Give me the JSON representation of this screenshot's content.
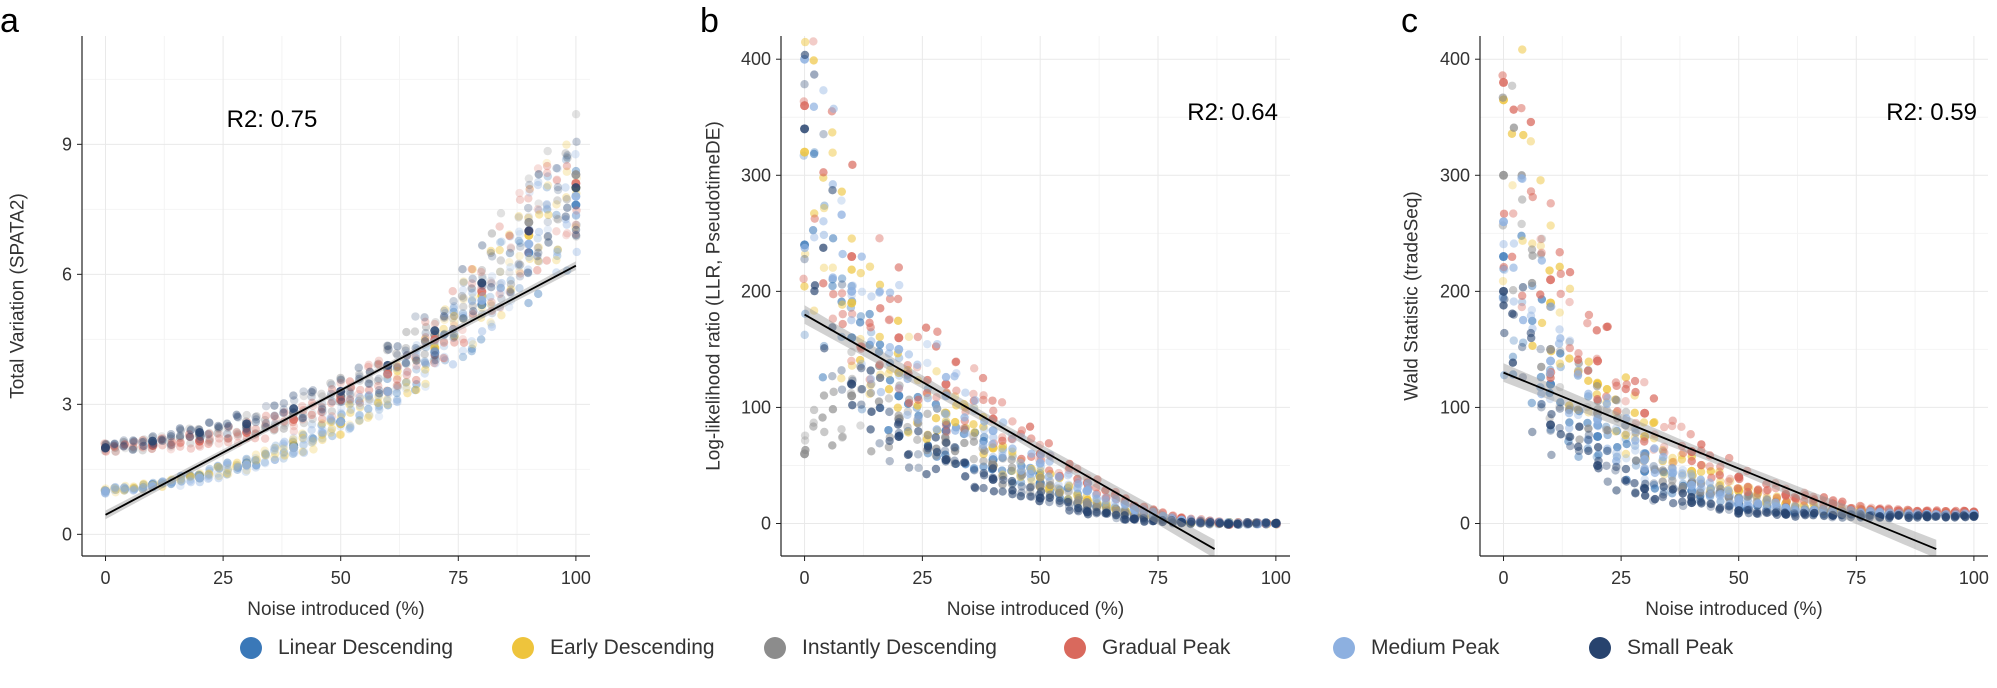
{
  "chart_data": [
    {
      "panel": "a",
      "type": "scatter",
      "title": "",
      "xlabel": "Noise introduced (%)",
      "ylabel": "Total Variation (SPATA2)",
      "xlim": [
        -5,
        103
      ],
      "ylim": [
        -0.5,
        11.5
      ],
      "xticks": [
        0,
        25,
        50,
        75,
        100
      ],
      "xtick_labels": [
        "0",
        "25",
        "50",
        "75",
        "100"
      ],
      "yticks": [
        0,
        3,
        6,
        9
      ],
      "ytick_labels": [
        "0",
        "3",
        "6",
        "9"
      ],
      "grid": true,
      "annotation": "R2: 0.75",
      "fit_line": {
        "x": [
          0,
          100
        ],
        "y": [
          0.45,
          6.2
        ]
      },
      "series": [
        {
          "name": "Linear Descending",
          "x": [
            0,
            10,
            20,
            30,
            40,
            50,
            60,
            70,
            80,
            90,
            100
          ],
          "y": [
            1.0,
            1.15,
            1.35,
            1.65,
            2.05,
            2.6,
            3.3,
            4.2,
            5.3,
            6.5,
            7.6
          ]
        },
        {
          "name": "Early Descending",
          "x": [
            0,
            10,
            20,
            30,
            40,
            50,
            60,
            70,
            80,
            90,
            100
          ],
          "y": [
            1.0,
            1.12,
            1.3,
            1.6,
            2.0,
            2.55,
            3.3,
            4.3,
            5.5,
            6.9,
            8.0
          ]
        },
        {
          "name": "Instantly Descending",
          "x": [
            0,
            10,
            20,
            30,
            40,
            50,
            60,
            70,
            80,
            90,
            100
          ],
          "y": [
            2.0,
            2.1,
            2.3,
            2.5,
            2.8,
            3.2,
            3.8,
            4.6,
            5.8,
            7.2,
            8.3
          ]
        },
        {
          "name": "Gradual Peak",
          "x": [
            0,
            10,
            20,
            30,
            40,
            50,
            60,
            70,
            80,
            90,
            100
          ],
          "y": [
            2.0,
            2.05,
            2.15,
            2.35,
            2.65,
            3.1,
            3.7,
            4.5,
            5.6,
            7.0,
            8.1
          ]
        },
        {
          "name": "Medium Peak",
          "x": [
            0,
            10,
            20,
            30,
            40,
            50,
            60,
            70,
            80,
            90,
            100
          ],
          "y": [
            1.0,
            1.1,
            1.3,
            1.6,
            2.0,
            2.6,
            3.3,
            4.2,
            5.4,
            6.7,
            7.8
          ]
        },
        {
          "name": "Small Peak",
          "x": [
            0,
            10,
            20,
            30,
            40,
            50,
            60,
            70,
            80,
            90,
            100
          ],
          "y": [
            2.0,
            2.15,
            2.35,
            2.55,
            2.9,
            3.3,
            3.9,
            4.7,
            5.8,
            7.0,
            8.0
          ]
        }
      ]
    },
    {
      "panel": "b",
      "type": "scatter",
      "title": "",
      "xlabel": "Noise introduced (%)",
      "ylabel": "Log-likelihood ratio (LLR, PseudotimeDE)",
      "xlim": [
        -5,
        103
      ],
      "ylim": [
        -28,
        420
      ],
      "xticks": [
        0,
        25,
        50,
        75,
        100
      ],
      "xtick_labels": [
        "0",
        "25",
        "50",
        "75",
        "100"
      ],
      "yticks": [
        0,
        100,
        200,
        300,
        400
      ],
      "ytick_labels": [
        "0",
        "100",
        "200",
        "300",
        "400"
      ],
      "grid": true,
      "annotation": "R2: 0.64",
      "fit_line": {
        "x": [
          0,
          87
        ],
        "y": [
          180,
          -22
        ]
      },
      "series": [
        {
          "name": "Linear Descending",
          "x": [
            0,
            10,
            20,
            30,
            40,
            50,
            60,
            70,
            80,
            90,
            100
          ],
          "y": [
            240,
            160,
            110,
            80,
            55,
            35,
            18,
            8,
            2,
            0,
            0
          ]
        },
        {
          "name": "Early Descending",
          "x": [
            0,
            10,
            20,
            30,
            40,
            50,
            60,
            70,
            80,
            90,
            100
          ],
          "y": [
            320,
            190,
            130,
            95,
            65,
            40,
            20,
            8,
            2,
            0,
            0
          ]
        },
        {
          "name": "Instantly Descending",
          "x": [
            0,
            10,
            20,
            30,
            40,
            50,
            60,
            70,
            80,
            90,
            100
          ],
          "y": [
            60,
            110,
            90,
            70,
            50,
            32,
            16,
            7,
            2,
            0,
            0
          ]
        },
        {
          "name": "Gradual Peak",
          "x": [
            0,
            10,
            20,
            30,
            40,
            50,
            60,
            70,
            80,
            90,
            100
          ],
          "y": [
            360,
            230,
            160,
            120,
            90,
            60,
            35,
            15,
            4,
            0,
            0
          ]
        },
        {
          "name": "Medium Peak",
          "x": [
            0,
            10,
            20,
            30,
            40,
            50,
            60,
            70,
            80,
            90,
            100
          ],
          "y": [
            400,
            200,
            150,
            110,
            80,
            52,
            28,
            12,
            3,
            0,
            0
          ]
        },
        {
          "name": "Small Peak",
          "x": [
            0,
            10,
            20,
            30,
            40,
            50,
            60,
            70,
            80,
            90,
            100
          ],
          "y": [
            340,
            120,
            75,
            55,
            38,
            22,
            10,
            4,
            1,
            0,
            0
          ]
        }
      ]
    },
    {
      "panel": "c",
      "type": "scatter",
      "title": "",
      "xlabel": "Noise introduced (%)",
      "ylabel": "Wald Statistic (tradeSeq)",
      "xlim": [
        -5,
        103
      ],
      "ylim": [
        -28,
        420
      ],
      "xticks": [
        0,
        25,
        50,
        75,
        100
      ],
      "xtick_labels": [
        "0",
        "25",
        "50",
        "75",
        "100"
      ],
      "yticks": [
        0,
        100,
        200,
        300,
        400
      ],
      "ytick_labels": [
        "0",
        "100",
        "200",
        "300",
        "400"
      ],
      "grid": true,
      "annotation": "R2: 0.59",
      "fit_line": {
        "x": [
          0,
          92
        ],
        "y": [
          130,
          -22
        ]
      },
      "series": [
        {
          "name": "Linear Descending",
          "x": [
            0,
            10,
            20,
            30,
            40,
            50,
            60,
            70,
            80,
            90,
            100
          ],
          "y": [
            230,
            120,
            75,
            45,
            28,
            17,
            11,
            9,
            8,
            8,
            8
          ]
        },
        {
          "name": "Early Descending",
          "x": [
            0,
            10,
            20,
            30,
            40,
            50,
            60,
            70,
            80,
            90,
            100
          ],
          "y": [
            365,
            190,
            120,
            75,
            45,
            28,
            17,
            12,
            10,
            9,
            9
          ]
        },
        {
          "name": "Instantly Descending",
          "x": [
            0,
            10,
            20,
            30,
            40,
            50,
            60,
            70,
            80,
            90,
            100
          ],
          "y": [
            300,
            150,
            95,
            58,
            35,
            22,
            14,
            10,
            9,
            8,
            8
          ]
        },
        {
          "name": "Gradual Peak",
          "x": [
            0,
            10,
            20,
            30,
            40,
            50,
            60,
            70,
            80,
            90,
            100
          ],
          "y": [
            380,
            210,
            140,
            95,
            62,
            40,
            25,
            17,
            12,
            10,
            10
          ]
        },
        {
          "name": "Medium Peak",
          "x": [
            0,
            10,
            20,
            30,
            40,
            50,
            60,
            70,
            80,
            90,
            100
          ],
          "y": [
            260,
            140,
            90,
            55,
            33,
            20,
            13,
            10,
            9,
            8,
            8
          ]
        },
        {
          "name": "Small Peak",
          "x": [
            0,
            10,
            20,
            30,
            40,
            50,
            60,
            70,
            80,
            90,
            100
          ],
          "y": [
            200,
            85,
            50,
            30,
            18,
            11,
            8,
            7,
            6,
            6,
            6
          ]
        }
      ]
    }
  ],
  "legend": {
    "placement": "bottom",
    "items": [
      {
        "label": "Linear Descending",
        "color": "#3a78b8"
      },
      {
        "label": "Early Descending",
        "color": "#eec43c"
      },
      {
        "label": "Instantly Descending",
        "color": "#8c8c8c"
      },
      {
        "label": "Gradual Peak",
        "color": "#d9695d"
      },
      {
        "label": "Medium Peak",
        "color": "#8db0e0"
      },
      {
        "label": "Small Peak",
        "color": "#27436e"
      }
    ]
  }
}
